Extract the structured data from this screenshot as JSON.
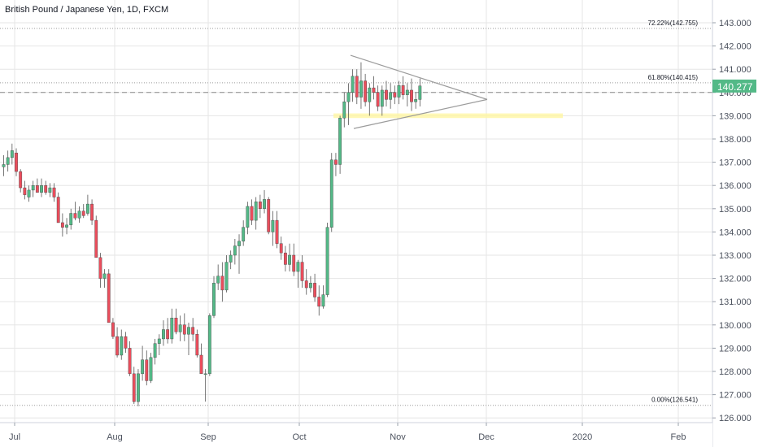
{
  "header": {
    "title": "British Pound / Japanese Yen, 1D, FXCM"
  },
  "colors": {
    "up": "#53b987",
    "down": "#eb4d5c",
    "last_price_bg": "#53b987",
    "grid": "#e6e6e6",
    "axis_text": "#4c525e",
    "level_line": "#9b9b9b",
    "triangle": "#9b9b9b",
    "highlight": "#fff59d"
  },
  "chart_data": {
    "type": "candlestick",
    "title": "British Pound / Japanese Yen, 1D, FXCM",
    "yticks": [
      "126.000",
      "127.000",
      "128.000",
      "129.000",
      "130.000",
      "131.000",
      "132.000",
      "133.000",
      "134.000",
      "135.000",
      "136.000",
      "137.000",
      "138.000",
      "139.000",
      "140.000",
      "141.000",
      "142.000",
      "143.000"
    ],
    "ylim": [
      125.8,
      143.7
    ],
    "x_tick_labels": [
      "Jul",
      "Aug",
      "Sep",
      "Oct",
      "Nov",
      "Dec",
      "2020",
      "Feb"
    ],
    "last_price": "140.277",
    "last_price_value": 140.277,
    "fib_levels": [
      {
        "label": "72.22%(142.755)",
        "value": 142.755
      },
      {
        "label": "61.80%(140.415)",
        "value": 140.415
      },
      {
        "label": "0.00%(126.541)",
        "value": 126.541
      }
    ],
    "dashed_level": 140.0,
    "highlight_zone": {
      "from": 138.9,
      "to": 139.1
    },
    "candles": [
      [
        136.8,
        137.3,
        136.4,
        136.9
      ],
      [
        136.9,
        137.5,
        136.6,
        137.2
      ],
      [
        137.2,
        137.8,
        136.9,
        137.5
      ],
      [
        137.4,
        137.6,
        136.4,
        136.6
      ],
      [
        136.6,
        136.7,
        135.7,
        135.9
      ],
      [
        135.9,
        136.2,
        135.4,
        135.6
      ],
      [
        135.5,
        136.0,
        135.3,
        135.8
      ],
      [
        135.8,
        136.2,
        135.5,
        136.0
      ],
      [
        136.0,
        136.3,
        135.7,
        135.7
      ],
      [
        135.7,
        136.3,
        135.5,
        136.0
      ],
      [
        136.0,
        136.2,
        135.6,
        135.7
      ],
      [
        135.7,
        136.1,
        135.5,
        135.9
      ],
      [
        135.9,
        136.1,
        135.3,
        135.5
      ],
      [
        135.5,
        135.7,
        134.4,
        134.4
      ],
      [
        134.4,
        134.8,
        133.8,
        134.2
      ],
      [
        134.2,
        134.6,
        133.9,
        134.3
      ],
      [
        134.3,
        135.0,
        134.1,
        134.8
      ],
      [
        134.8,
        135.3,
        134.5,
        134.6
      ],
      [
        134.6,
        135.1,
        134.4,
        134.9
      ],
      [
        134.9,
        135.2,
        134.6,
        134.7
      ],
      [
        134.8,
        135.6,
        134.7,
        135.2
      ],
      [
        135.2,
        135.4,
        134.3,
        134.5
      ],
      [
        134.5,
        134.7,
        132.9,
        132.9
      ],
      [
        132.9,
        133.1,
        131.6,
        132.0
      ],
      [
        132.0,
        132.4,
        131.6,
        132.2
      ],
      [
        132.2,
        132.4,
        130.1,
        130.1
      ],
      [
        130.1,
        130.3,
        129.4,
        129.5
      ],
      [
        129.5,
        129.9,
        128.6,
        128.7
      ],
      [
        128.7,
        129.8,
        128.5,
        129.5
      ],
      [
        129.5,
        129.7,
        128.8,
        129.0
      ],
      [
        129.0,
        129.3,
        127.8,
        127.9
      ],
      [
        127.9,
        128.2,
        126.6,
        126.7
      ],
      [
        126.7,
        128.1,
        126.5,
        127.9
      ],
      [
        127.9,
        129.1,
        127.6,
        128.5
      ],
      [
        128.5,
        128.9,
        127.4,
        127.6
      ],
      [
        127.6,
        128.8,
        127.5,
        128.6
      ],
      [
        128.6,
        129.4,
        128.3,
        129.2
      ],
      [
        129.2,
        129.6,
        128.7,
        129.4
      ],
      [
        129.4,
        130.2,
        129.1,
        129.8
      ],
      [
        129.8,
        130.3,
        129.2,
        129.4
      ],
      [
        129.4,
        130.7,
        129.2,
        130.3
      ],
      [
        130.3,
        130.7,
        129.6,
        129.7
      ],
      [
        129.7,
        130.4,
        129.3,
        130.0
      ],
      [
        130.0,
        130.5,
        129.3,
        129.6
      ],
      [
        129.6,
        130.1,
        128.7,
        129.9
      ],
      [
        129.9,
        130.3,
        129.3,
        129.6
      ],
      [
        129.6,
        129.8,
        128.6,
        128.7
      ],
      [
        128.7,
        129.2,
        127.9,
        127.9
      ],
      [
        127.9,
        128.1,
        126.7,
        127.9
      ],
      [
        127.9,
        130.5,
        127.8,
        130.4
      ],
      [
        130.4,
        132.1,
        130.3,
        131.8
      ],
      [
        131.8,
        132.6,
        131.5,
        132.1
      ],
      [
        132.1,
        132.7,
        131.0,
        131.5
      ],
      [
        131.5,
        133.0,
        131.4,
        132.7
      ],
      [
        132.7,
        133.2,
        132.4,
        133.0
      ],
      [
        133.0,
        133.7,
        132.6,
        133.4
      ],
      [
        133.4,
        133.9,
        132.2,
        133.6
      ],
      [
        133.6,
        134.5,
        133.4,
        134.2
      ],
      [
        134.2,
        135.3,
        133.9,
        135.1
      ],
      [
        135.1,
        135.4,
        134.3,
        134.5
      ],
      [
        134.5,
        135.5,
        134.1,
        135.3
      ],
      [
        135.3,
        135.6,
        134.6,
        135.0
      ],
      [
        135.0,
        135.8,
        134.8,
        135.4
      ],
      [
        135.4,
        135.5,
        133.9,
        134.0
      ],
      [
        134.0,
        134.9,
        133.4,
        134.5
      ],
      [
        134.5,
        134.9,
        133.3,
        133.5
      ],
      [
        133.5,
        133.8,
        132.8,
        133.1
      ],
      [
        133.1,
        133.4,
        132.3,
        132.6
      ],
      [
        132.6,
        133.5,
        132.3,
        133.0
      ],
      [
        133.0,
        133.5,
        132.1,
        132.3
      ],
      [
        132.3,
        132.8,
        131.6,
        132.7
      ],
      [
        132.7,
        133.0,
        131.6,
        131.9
      ],
      [
        131.9,
        132.4,
        131.3,
        131.6
      ],
      [
        131.6,
        132.1,
        131.4,
        131.8
      ],
      [
        131.8,
        132.2,
        131.0,
        131.2
      ],
      [
        131.2,
        131.7,
        130.4,
        130.8
      ],
      [
        130.8,
        131.7,
        130.7,
        131.3
      ],
      [
        131.3,
        134.4,
        131.2,
        134.2
      ],
      [
        134.2,
        137.4,
        134.0,
        137.1
      ],
      [
        137.1,
        137.4,
        136.4,
        136.9
      ],
      [
        136.9,
        139.0,
        136.5,
        138.9
      ],
      [
        138.9,
        140.0,
        138.5,
        139.6
      ],
      [
        139.6,
        140.4,
        138.6,
        140.0
      ],
      [
        140.0,
        141.0,
        139.6,
        140.7
      ],
      [
        140.7,
        141.0,
        139.5,
        139.8
      ],
      [
        139.8,
        141.3,
        139.3,
        140.5
      ],
      [
        140.5,
        140.8,
        139.4,
        139.6
      ],
      [
        139.6,
        140.4,
        139.0,
        140.2
      ],
      [
        140.2,
        140.7,
        139.7,
        140.0
      ],
      [
        140.0,
        140.3,
        139.2,
        139.4
      ],
      [
        139.4,
        140.3,
        139.0,
        140.1
      ],
      [
        140.1,
        140.5,
        139.4,
        139.7
      ],
      [
        139.7,
        140.4,
        139.3,
        140.0
      ],
      [
        140.0,
        140.3,
        139.5,
        139.8
      ],
      [
        139.8,
        140.5,
        139.5,
        140.3
      ],
      [
        140.3,
        140.7,
        139.7,
        139.9
      ],
      [
        139.9,
        140.4,
        139.4,
        140.1
      ],
      [
        140.1,
        140.6,
        139.2,
        139.6
      ],
      [
        139.6,
        140.0,
        139.3,
        139.7
      ],
      [
        139.7,
        140.6,
        139.4,
        140.28
      ]
    ]
  }
}
